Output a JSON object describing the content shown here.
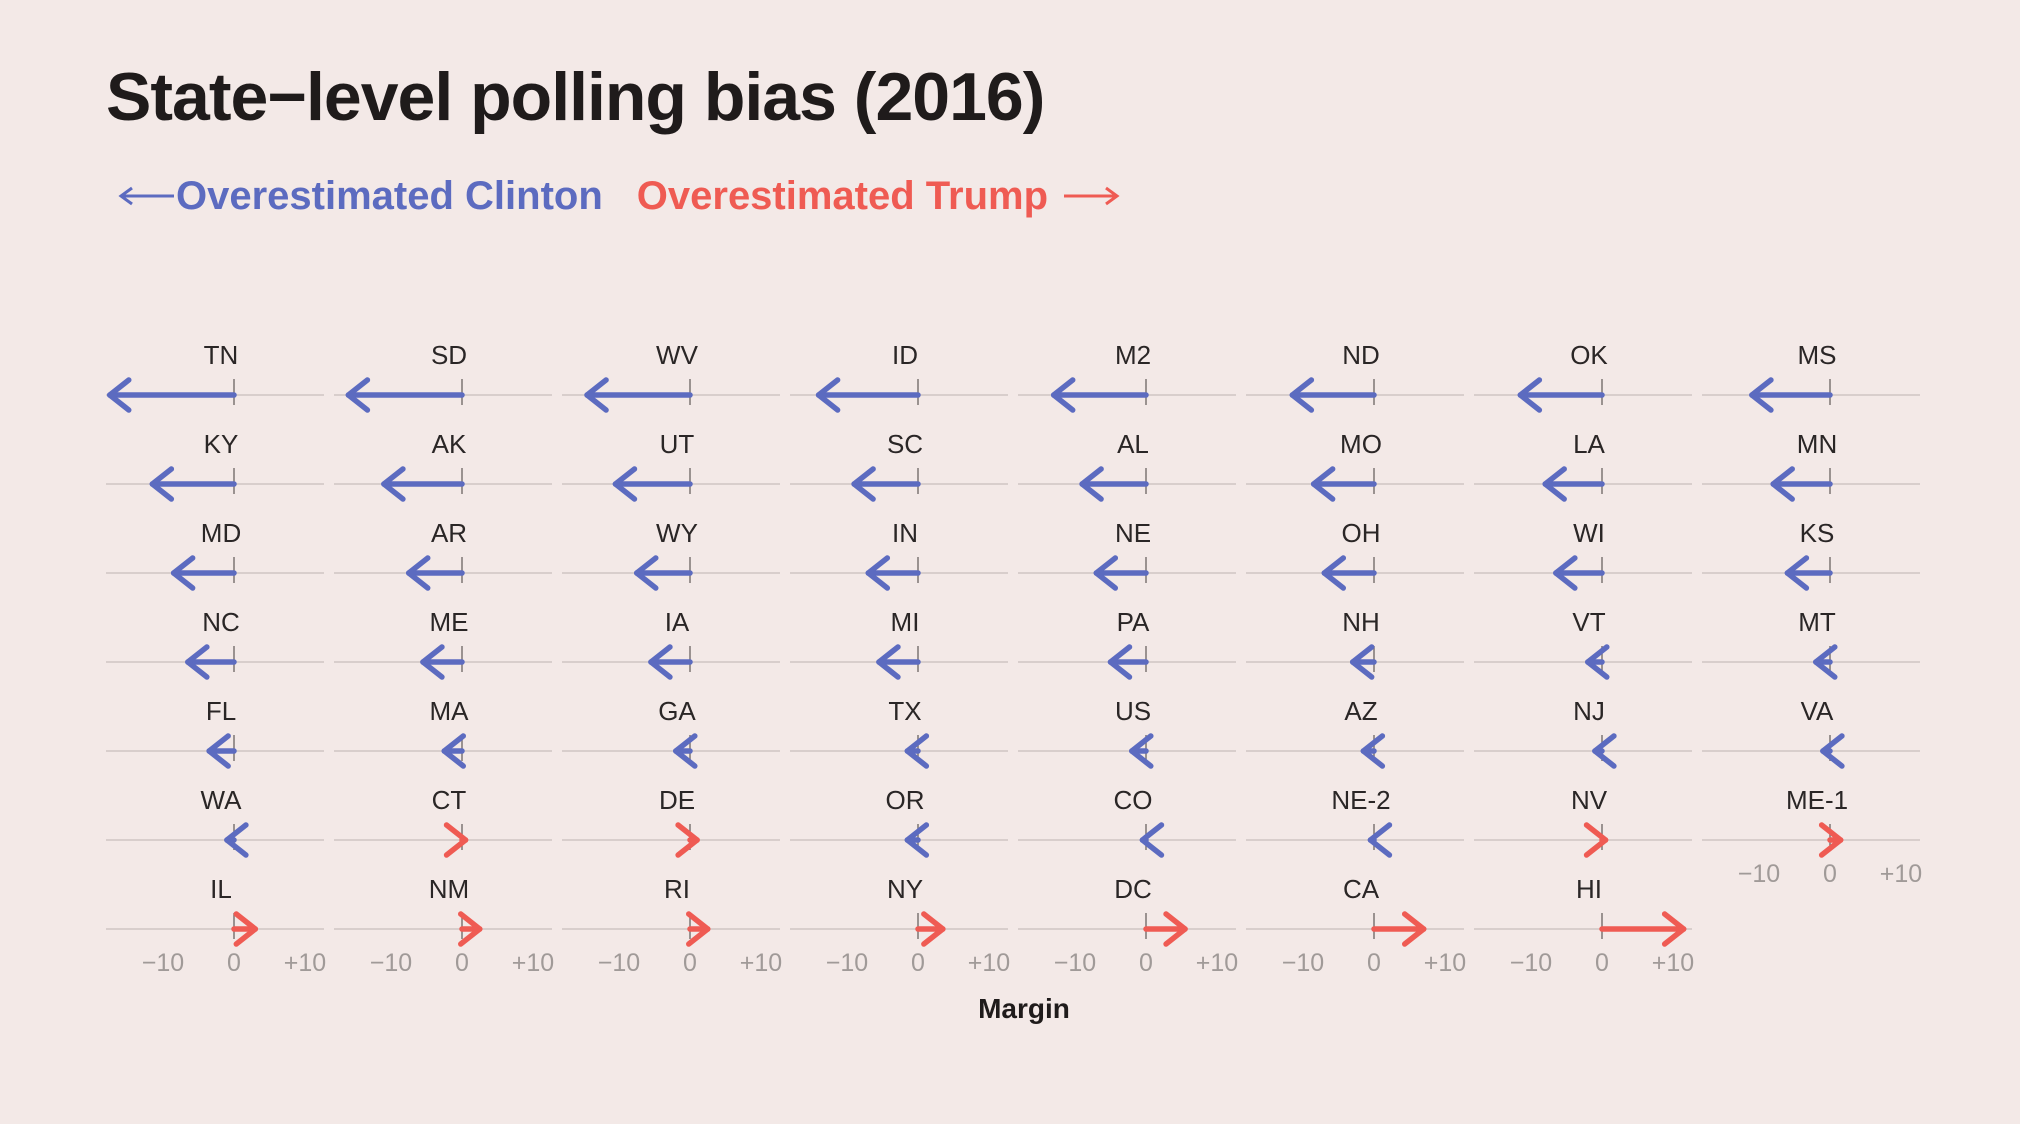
{
  "chart_data": {
    "type": "arrow",
    "title": "State−level polling bias (2016)",
    "legend": {
      "negative_label": "Overestimated Clinton",
      "positive_label": "Overestimated Trump"
    },
    "xlabel": "Margin",
    "xlim": [
      -17,
      14
    ],
    "xticks": [
      -10,
      0,
      10
    ],
    "xtick_labels": [
      "−10",
      "0",
      "+10"
    ],
    "colors": {
      "clinton": "#5c6bc0",
      "trump": "#ef5b53",
      "grid": "#cfc6c4"
    },
    "layout": "facet-grid, 8 columns x 7 rows, column-major",
    "panels": [
      {
        "label": "TN",
        "value": -17.5
      },
      {
        "label": "KY",
        "value": -11.5
      },
      {
        "label": "MD",
        "value": -8.5
      },
      {
        "label": "NC",
        "value": -6.5
      },
      {
        "label": "FL",
        "value": -3.5
      },
      {
        "label": "WA",
        "value": -1.0
      },
      {
        "label": "IL",
        "value": 3.0
      },
      {
        "label": "SD",
        "value": -16.0
      },
      {
        "label": "AK",
        "value": -11.0
      },
      {
        "label": "AR",
        "value": -7.5
      },
      {
        "label": "ME",
        "value": -5.5
      },
      {
        "label": "MA",
        "value": -2.5
      },
      {
        "label": "CT",
        "value": 0.5
      },
      {
        "label": "NM",
        "value": 2.5
      },
      {
        "label": "WV",
        "value": -14.5
      },
      {
        "label": "UT",
        "value": -10.5
      },
      {
        "label": "WY",
        "value": -7.5
      },
      {
        "label": "IA",
        "value": -5.5
      },
      {
        "label": "GA",
        "value": -2.0
      },
      {
        "label": "DE",
        "value": 1.0
      },
      {
        "label": "RI",
        "value": 2.5
      },
      {
        "label": "ID",
        "value": -14.0
      },
      {
        "label": "SC",
        "value": -9.0
      },
      {
        "label": "IN",
        "value": -7.0
      },
      {
        "label": "MI",
        "value": -5.5
      },
      {
        "label": "TX",
        "value": -1.5
      },
      {
        "label": "OR",
        "value": -1.5
      },
      {
        "label": "NY",
        "value": 3.5
      },
      {
        "label": "M2",
        "value": -13.0
      },
      {
        "label": "AL",
        "value": -9.0
      },
      {
        "label": "NE",
        "value": -7.0
      },
      {
        "label": "PA",
        "value": -5.0
      },
      {
        "label": "US",
        "value": -2.0
      },
      {
        "label": "CO",
        "value": -0.5
      },
      {
        "label": "DC",
        "value": 5.5
      },
      {
        "label": "ND",
        "value": -11.5
      },
      {
        "label": "MO",
        "value": -8.5
      },
      {
        "label": "OH",
        "value": -7.0
      },
      {
        "label": "NH",
        "value": -3.0
      },
      {
        "label": "AZ",
        "value": -1.5
      },
      {
        "label": "NE-2",
        "value": -0.5
      },
      {
        "label": "CA",
        "value": 7.0
      },
      {
        "label": "OK",
        "value": -11.5
      },
      {
        "label": "LA",
        "value": -8.0
      },
      {
        "label": "WI",
        "value": -6.5
      },
      {
        "label": "VT",
        "value": -2.0
      },
      {
        "label": "NJ",
        "value": -1.0
      },
      {
        "label": "NV",
        "value": 0.5
      },
      {
        "label": "HI",
        "value": 11.5
      },
      {
        "label": "MS",
        "value": -11.0
      },
      {
        "label": "MN",
        "value": -8.0
      },
      {
        "label": "KS",
        "value": -6.0
      },
      {
        "label": "MT",
        "value": -2.0
      },
      {
        "label": "VA",
        "value": -1.0
      },
      {
        "label": "ME-1",
        "value": 1.5
      }
    ]
  }
}
